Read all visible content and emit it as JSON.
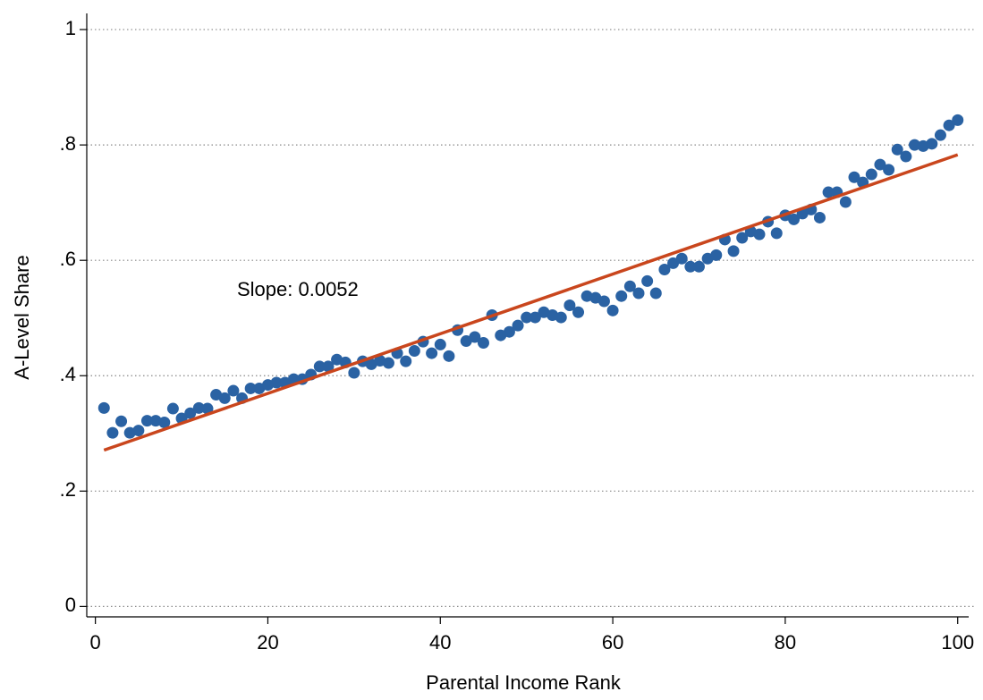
{
  "chart_data": {
    "type": "scatter",
    "x_label": "Parental Income Rank",
    "y_label": "A-Level Share",
    "annotation": "Slope: 0.0052",
    "x": [
      1,
      2,
      3,
      4,
      5,
      6,
      7,
      8,
      9,
      10,
      11,
      12,
      13,
      14,
      15,
      16,
      17,
      18,
      19,
      20,
      21,
      22,
      23,
      24,
      25,
      26,
      27,
      28,
      29,
      30,
      31,
      32,
      33,
      34,
      35,
      36,
      37,
      38,
      39,
      40,
      41,
      42,
      43,
      44,
      45,
      46,
      47,
      48,
      49,
      50,
      51,
      52,
      53,
      54,
      55,
      56,
      57,
      58,
      59,
      60,
      61,
      62,
      63,
      64,
      65,
      66,
      67,
      68,
      69,
      70,
      71,
      72,
      73,
      74,
      75,
      76,
      77,
      78,
      79,
      80,
      81,
      82,
      83,
      84,
      85,
      86,
      87,
      88,
      89,
      90,
      91,
      92,
      93,
      94,
      95,
      96,
      97,
      98,
      99,
      100
    ],
    "series": [
      {
        "color": "#2a62a3",
        "values": [
          0.344,
          0.301,
          0.321,
          0.301,
          0.305,
          0.322,
          0.322,
          0.319,
          0.343,
          0.326,
          0.335,
          0.344,
          0.343,
          0.367,
          0.361,
          0.374,
          0.361,
          0.378,
          0.378,
          0.384,
          0.388,
          0.388,
          0.394,
          0.394,
          0.402,
          0.416,
          0.416,
          0.428,
          0.423,
          0.405,
          0.425,
          0.42,
          0.426,
          0.422,
          0.439,
          0.425,
          0.443,
          0.459,
          0.439,
          0.454,
          0.434,
          0.479,
          0.46,
          0.467,
          0.457,
          0.505,
          0.47,
          0.476,
          0.487,
          0.501,
          0.501,
          0.51,
          0.505,
          0.501,
          0.522,
          0.51,
          0.538,
          0.535,
          0.529,
          0.513,
          0.538,
          0.555,
          0.543,
          0.564,
          0.543,
          0.584,
          0.595,
          0.603,
          0.589,
          0.589,
          0.603,
          0.609,
          0.636,
          0.616,
          0.639,
          0.65,
          0.645,
          0.667,
          0.647,
          0.678,
          0.671,
          0.681,
          0.688,
          0.674,
          0.718,
          0.718,
          0.701,
          0.744,
          0.735,
          0.749,
          0.766,
          0.757,
          0.792,
          0.78,
          0.8,
          0.798,
          0.802,
          0.817,
          0.834,
          0.843
        ]
      }
    ],
    "fit_line": {
      "color": "#c9461d",
      "x": [
        1,
        100
      ],
      "values": [
        0.271,
        0.783
      ]
    },
    "xlim": [
      -1,
      102
    ],
    "ylim": [
      -0.018,
      1.028
    ],
    "xticks": [
      0,
      20,
      40,
      60,
      80,
      100
    ],
    "yticks": [
      0,
      {
        "value": 0.2,
        "label": ".2"
      },
      {
        "value": 0.4,
        "label": ".4"
      },
      {
        "value": 0.6,
        "label": ".6"
      },
      {
        "value": 0.8,
        "label": ".8"
      },
      1
    ],
    "grid": true
  }
}
